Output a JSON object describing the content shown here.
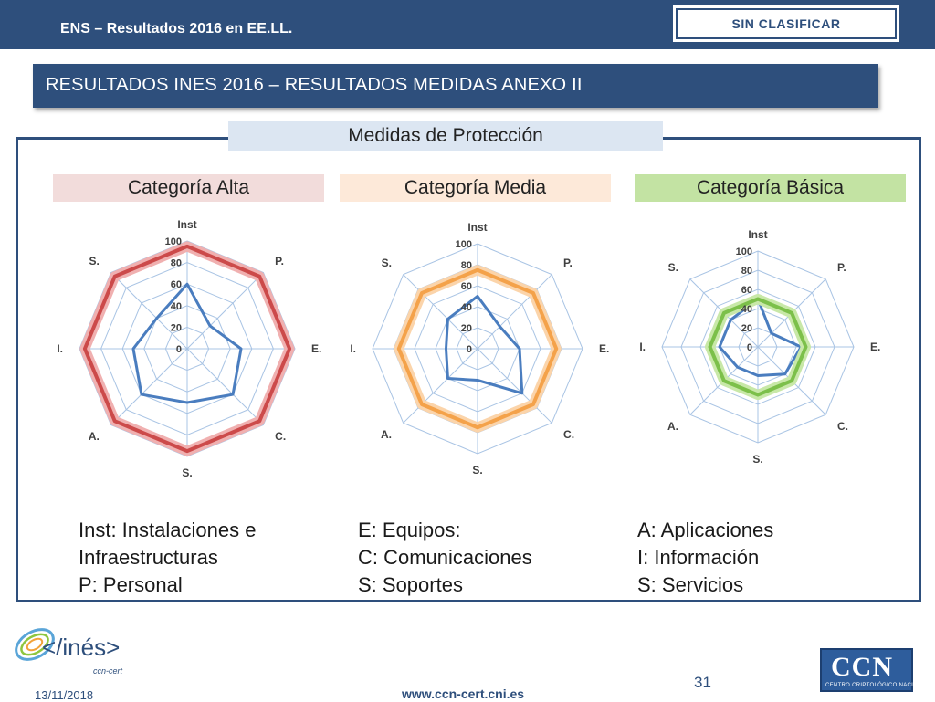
{
  "header": {
    "title": "ENS – Resultados 2016 en EE.LL.",
    "classification": "SIN CLASIFICAR"
  },
  "section_title": "RESULTADOS INES 2016 – RESULTADOS MEDIDAS ANEXO II",
  "frame_title": "Medidas de Protección",
  "colors": {
    "navy": "#2e4f7c",
    "series": "#4a7dbf",
    "alta": "#cc4a4a",
    "media": "#f4a24a",
    "basica": "#7cc04a"
  },
  "chart_data": [
    {
      "type": "radar",
      "title": "Categoría Alta",
      "axes": [
        "Inst",
        "P.",
        "E.",
        "C.",
        "S.",
        "A.",
        "I.",
        "S."
      ],
      "scale_ticks": [
        "0",
        "20",
        "40",
        "60",
        "80",
        "100"
      ],
      "rlim": [
        0,
        100
      ],
      "series": [
        {
          "values": [
            60,
            30,
            50,
            60,
            50,
            60,
            50,
            40
          ]
        },
        {
          "values": [
            95,
            95,
            95,
            95,
            95,
            95,
            95,
            95
          ]
        }
      ]
    },
    {
      "type": "radar",
      "title": "Categoría Media",
      "axes": [
        "Inst",
        "P.",
        "E.",
        "C.",
        "S.",
        "A.",
        "I.",
        "S."
      ],
      "scale_ticks": [
        "0",
        "20",
        "40",
        "60",
        "80",
        "100"
      ],
      "rlim": [
        0,
        100
      ],
      "series": [
        {
          "values": [
            50,
            30,
            40,
            60,
            30,
            40,
            30,
            40
          ]
        },
        {
          "values": [
            75,
            75,
            75,
            75,
            75,
            75,
            75,
            75
          ]
        }
      ]
    },
    {
      "type": "radar",
      "title": "Categoría Básica",
      "axes": [
        "Inst",
        "P.",
        "E.",
        "C.",
        "S.",
        "A.",
        "I.",
        "S."
      ],
      "scale_ticks": [
        "0",
        "20",
        "40",
        "60",
        "80",
        "100"
      ],
      "rlim": [
        0,
        100
      ],
      "series": [
        {
          "values": [
            50,
            20,
            45,
            40,
            30,
            30,
            40,
            40
          ]
        },
        {
          "values": [
            50,
            50,
            50,
            50,
            50,
            50,
            50,
            50
          ]
        }
      ]
    }
  ],
  "legend": {
    "col1": [
      "Inst: Instalaciones e",
      "Infraestructuras",
      "P: Personal"
    ],
    "col2": [
      "E: Equipos:",
      "C: Comunicaciones",
      "S: Soportes"
    ],
    "col3": [
      "A: Aplicaciones",
      "I: Información",
      "S: Servicios"
    ]
  },
  "footer": {
    "date": "13/11/2018",
    "url": "www.ccn-cert.cni.es",
    "page": "31",
    "ines_logo_text": "</inés>",
    "ines_logo_sub": "ccn-cert",
    "ccn_logo_letters": "CCN",
    "ccn_logo_sub": "CENTRO CRIPTOLÓGICO NACIONAL"
  }
}
